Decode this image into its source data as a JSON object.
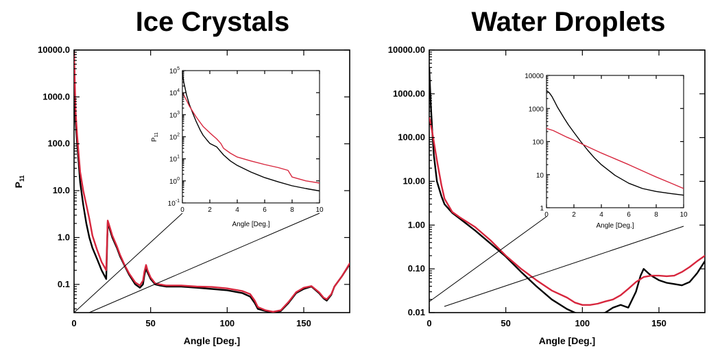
{
  "chart_data": [
    {
      "type": "line",
      "title": "Ice Crystals",
      "xlabel": "Angle [Deg.]",
      "ylabel": "P11",
      "ylabel_main": "P",
      "ylabel_sub": "11",
      "xlim": [
        0,
        180
      ],
      "ylim": [
        0.025,
        10000
      ],
      "yscale": "log",
      "xticks": [
        0,
        50,
        100,
        150
      ],
      "xtick_labels": [
        "0",
        "50",
        "100",
        "150"
      ],
      "yticks": [
        10000,
        1000,
        100,
        10,
        1,
        0.1
      ],
      "ytick_labels": [
        "10000.0",
        "1000.0",
        "100.0",
        "10.0",
        "1.0",
        "0.1"
      ],
      "colors": [
        "#000000",
        "#d7263d"
      ],
      "series": [
        {
          "color": "#000000",
          "x": [
            0,
            0.5,
            1,
            2,
            3,
            4,
            6,
            8,
            10,
            12,
            15,
            18,
            20,
            21,
            22,
            23,
            25,
            28,
            30,
            33,
            36,
            40,
            43,
            45,
            46,
            47,
            48,
            50,
            53,
            56,
            60,
            70,
            80,
            90,
            100,
            110,
            115,
            118,
            120,
            125,
            130,
            135,
            140,
            145,
            150,
            155,
            160,
            163,
            165,
            168,
            170,
            175,
            180
          ],
          "y": [
            10000,
            800,
            300,
            100,
            40,
            15,
            5,
            2,
            1,
            0.6,
            0.35,
            0.2,
            0.15,
            0.13,
            2.1,
            1.6,
            1.0,
            0.6,
            0.4,
            0.25,
            0.16,
            0.1,
            0.085,
            0.1,
            0.16,
            0.22,
            0.18,
            0.13,
            0.1,
            0.095,
            0.09,
            0.09,
            0.085,
            0.08,
            0.075,
            0.065,
            0.055,
            0.04,
            0.03,
            0.027,
            0.025,
            0.027,
            0.04,
            0.065,
            0.08,
            0.09,
            0.065,
            0.05,
            0.045,
            0.06,
            0.09,
            0.15,
            0.27
          ]
        },
        {
          "color": "#d7263d",
          "x": [
            0,
            0.5,
            1,
            2,
            3,
            4,
            6,
            8,
            10,
            12,
            15,
            18,
            20,
            21,
            22,
            23,
            25,
            28,
            30,
            33,
            36,
            40,
            43,
            45,
            46,
            47,
            48,
            50,
            53,
            56,
            60,
            70,
            80,
            90,
            100,
            110,
            115,
            118,
            120,
            125,
            130,
            135,
            140,
            145,
            150,
            155,
            160,
            163,
            165,
            168,
            170,
            175,
            180
          ],
          "y": [
            9000,
            2000,
            500,
            150,
            60,
            25,
            10,
            5,
            2.5,
            1.1,
            0.55,
            0.3,
            0.23,
            0.2,
            2.3,
            1.8,
            1.1,
            0.65,
            0.43,
            0.26,
            0.17,
            0.11,
            0.095,
            0.12,
            0.19,
            0.26,
            0.2,
            0.14,
            0.105,
            0.1,
            0.095,
            0.095,
            0.09,
            0.088,
            0.082,
            0.072,
            0.062,
            0.045,
            0.033,
            0.028,
            0.026,
            0.028,
            0.042,
            0.068,
            0.085,
            0.092,
            0.068,
            0.052,
            0.048,
            0.062,
            0.09,
            0.15,
            0.28
          ]
        }
      ],
      "inset": {
        "xlabel": "Angle [Deg.]",
        "ylabel_main": "P",
        "ylabel_sub": "11",
        "xlim": [
          0,
          10
        ],
        "ylim": [
          0.1,
          100000
        ],
        "yscale": "log",
        "xticks": [
          0,
          2,
          4,
          6,
          8,
          10
        ],
        "xtick_labels": [
          "0",
          "2",
          "4",
          "6",
          "8",
          "10"
        ],
        "yticks": [
          100000,
          10000,
          1000,
          100,
          10,
          1,
          0.1
        ],
        "ytick_base": [
          "10",
          "10",
          "10",
          "10",
          "10",
          "10",
          "10"
        ],
        "ytick_exp": [
          "5",
          "4",
          "3",
          "2",
          "1",
          "0",
          "-1"
        ],
        "series": [
          {
            "color": "#000000",
            "x": [
              0,
              0.1,
              0.3,
              0.5,
              0.8,
              1,
              1.3,
              1.5,
              1.8,
              2,
              2.3,
              2.5,
              2.7,
              3,
              3.5,
              4,
              5,
              6,
              7,
              8,
              9,
              10
            ],
            "y": [
              80000,
              30000,
              8000,
              3000,
              1000,
              500,
              200,
              120,
              70,
              50,
              40,
              35,
              25,
              15,
              8,
              5,
              2.5,
              1.4,
              0.9,
              0.6,
              0.45,
              0.35
            ]
          },
          {
            "color": "#d7263d",
            "x": [
              0,
              0.2,
              0.5,
              1,
              1.5,
              2,
              2.5,
              2.8,
              3,
              3.5,
              4,
              5,
              6,
              7,
              7.7,
              8,
              9,
              10
            ],
            "y": [
              10000,
              6000,
              2500,
              800,
              300,
              150,
              80,
              50,
              30,
              18,
              12,
              8,
              5.5,
              4,
              3,
              1.5,
              1,
              0.8
            ]
          }
        ]
      }
    },
    {
      "type": "line",
      "title": "Water Droplets",
      "xlabel": "Angle [Deg.]",
      "xlim": [
        0,
        180
      ],
      "ylim": [
        0.01,
        10000
      ],
      "yscale": "log",
      "xticks": [
        0,
        50,
        100,
        150
      ],
      "xtick_labels": [
        "0",
        "50",
        "100",
        "150"
      ],
      "yticks": [
        10000,
        1000,
        100,
        10,
        1,
        0.1,
        0.01
      ],
      "ytick_labels": [
        "10000.00",
        "1000.00",
        "100.00",
        "10.00",
        "1.00",
        "0.10",
        "0.01"
      ],
      "colors": [
        "#000000",
        "#d7263d"
      ],
      "series": [
        {
          "color": "#000000",
          "x": [
            0,
            0.5,
            1,
            2,
            3,
            5,
            8,
            10,
            15,
            20,
            30,
            40,
            50,
            60,
            70,
            80,
            90,
            95,
            100,
            110,
            115,
            120,
            125,
            130,
            135,
            138,
            140,
            143,
            145,
            150,
            155,
            160,
            165,
            170,
            175,
            180
          ],
          "y": [
            4000,
            1500,
            600,
            130,
            40,
            10,
            4.5,
            3,
            1.9,
            1.4,
            0.75,
            0.38,
            0.19,
            0.085,
            0.04,
            0.02,
            0.012,
            0.01,
            0.009,
            0.009,
            0.01,
            0.013,
            0.015,
            0.013,
            0.03,
            0.07,
            0.1,
            0.08,
            0.07,
            0.055,
            0.048,
            0.045,
            0.042,
            0.05,
            0.08,
            0.15
          ]
        },
        {
          "color": "#d7263d",
          "x": [
            0,
            0.5,
            1,
            2,
            3,
            5,
            8,
            10,
            15,
            20,
            30,
            40,
            50,
            60,
            70,
            80,
            90,
            95,
            100,
            105,
            110,
            115,
            120,
            125,
            130,
            135,
            140,
            145,
            150,
            155,
            160,
            165,
            170,
            175,
            180
          ],
          "y": [
            280,
            250,
            200,
            130,
            80,
            30,
            8,
            4,
            2,
            1.5,
            0.9,
            0.45,
            0.2,
            0.1,
            0.055,
            0.032,
            0.022,
            0.017,
            0.015,
            0.015,
            0.016,
            0.018,
            0.02,
            0.025,
            0.035,
            0.05,
            0.065,
            0.07,
            0.07,
            0.068,
            0.07,
            0.085,
            0.11,
            0.15,
            0.2
          ]
        }
      ],
      "inset": {
        "xlabel": "Angle [Deg.]",
        "xlim": [
          0,
          10
        ],
        "ylim": [
          1,
          10000
        ],
        "yscale": "log",
        "xticks": [
          0,
          2,
          4,
          6,
          8,
          10
        ],
        "xtick_labels": [
          "0",
          "2",
          "4",
          "6",
          "8",
          "10"
        ],
        "yticks": [
          10000,
          1000,
          100,
          10,
          1
        ],
        "ytick_labels": [
          "10000",
          "1000",
          "100",
          "10",
          "1"
        ],
        "series": [
          {
            "color": "#000000",
            "x": [
              0,
              0.2,
              0.4,
              0.6,
              0.8,
              1,
              1.3,
              1.6,
              2,
              2.5,
              3,
              3.5,
              4,
              5,
              6,
              7,
              8,
              9,
              10
            ],
            "y": [
              3500,
              3000,
              2300,
              1600,
              1100,
              800,
              500,
              320,
              190,
              100,
              55,
              32,
              20,
              9.5,
              5.5,
              3.8,
              3.1,
              2.7,
              2.4
            ]
          },
          {
            "color": "#d7263d",
            "x": [
              0,
              0.5,
              1,
              1.5,
              2,
              3,
              4,
              5,
              6,
              7,
              8,
              9,
              10
            ],
            "y": [
              250,
              215,
              170,
              135,
              110,
              70,
              45,
              30,
              20,
              13,
              8.5,
              5.7,
              3.8
            ]
          }
        ]
      }
    }
  ]
}
